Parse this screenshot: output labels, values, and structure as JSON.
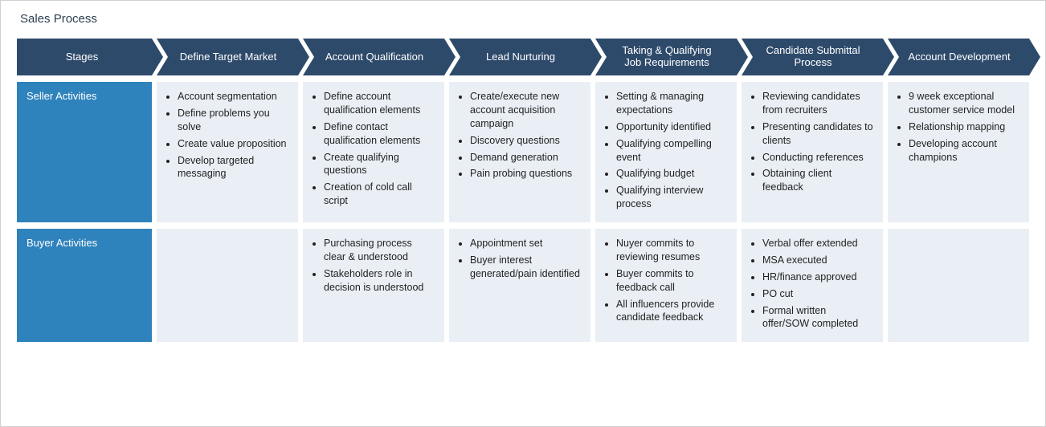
{
  "title": "Sales Process",
  "colors": {
    "header_bg": "#2e4a6b",
    "row_label_bg": "#2f83bc",
    "cell_bg": "#eaeff5",
    "text_light": "#ffffff"
  },
  "row_labels": {
    "stages": "Stages",
    "seller": "Seller Activities",
    "buyer": "Buyer Activities"
  },
  "stages": [
    {
      "name": "Define Target Market",
      "seller": [
        "Account segmentation",
        "Define problems you solve",
        "Create value proposition",
        "Develop targeted messaging"
      ],
      "buyer": []
    },
    {
      "name": "Account Qualification",
      "seller": [
        "Define account qualification elements",
        "Define contact qualification elements",
        "Create qualifying questions",
        "Creation of cold call script"
      ],
      "buyer": [
        "Purchasing process clear & understood",
        "Stakeholders role in decision is understood"
      ]
    },
    {
      "name": "Lead Nurturing",
      "seller": [
        "Create/execute new account acquisition campaign",
        "Discovery questions",
        "Demand generation",
        "Pain probing questions"
      ],
      "buyer": [
        "Appointment set",
        "Buyer interest generated/pain identified"
      ]
    },
    {
      "name": "Taking & Qualifying Job Requirements",
      "seller": [
        "Setting & managing expectations",
        "Opportunity identified",
        "Qualifying compelling event",
        "Qualifying budget",
        "Qualifying interview process"
      ],
      "buyer": [
        "Nuyer commits to reviewing resumes",
        "Buyer commits to feedback call",
        "All influencers provide candidate feedback"
      ]
    },
    {
      "name": "Candidate Submittal Process",
      "seller": [
        "Reviewing candidates from recruiters",
        "Presenting candidates to clients",
        "Conducting references",
        "Obtaining client feedback"
      ],
      "buyer": [
        "Verbal offer extended",
        "MSA executed",
        "HR/finance approved",
        "PO cut",
        "Formal written offer/SOW completed"
      ]
    },
    {
      "name": "Account Development",
      "seller": [
        "9 week exceptional customer service model",
        "Relationship mapping",
        "Developing account champions"
      ],
      "buyer": []
    }
  ]
}
